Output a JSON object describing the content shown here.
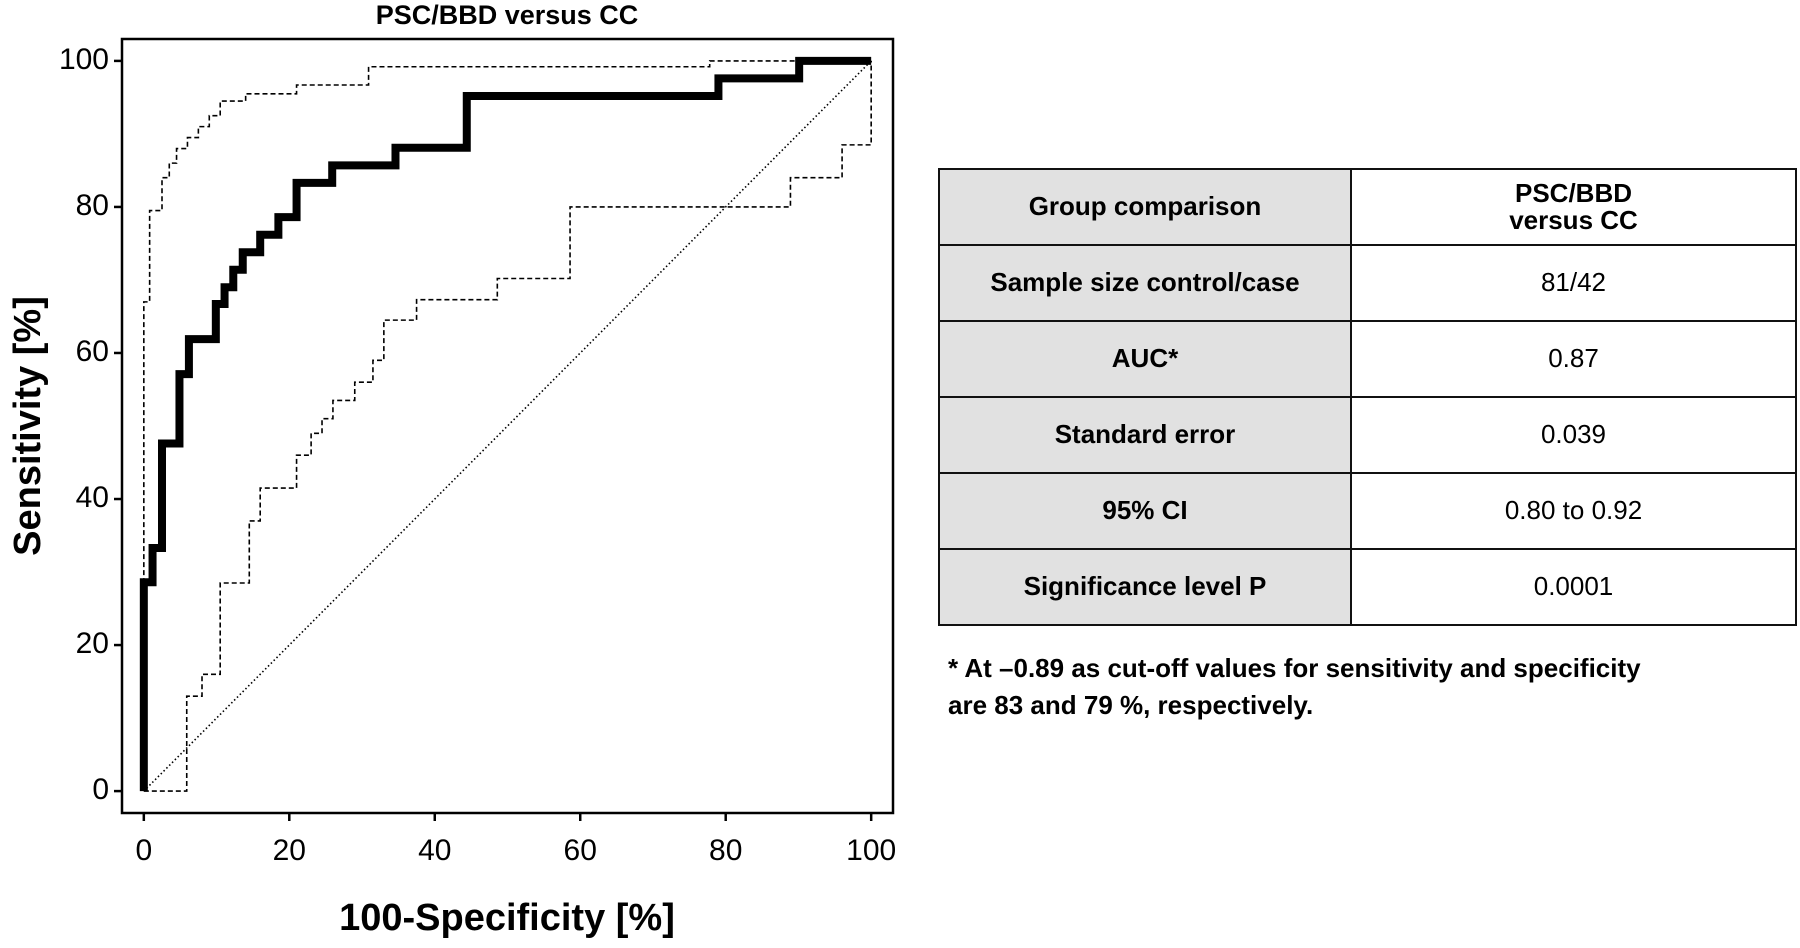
{
  "chart_data": {
    "type": "line",
    "title": "PSC/BBD versus CC",
    "xlabel": "100-Specificity [%]",
    "ylabel": "Sensitivity [%]",
    "xlim": [
      -3,
      103
    ],
    "ylim": [
      -3,
      103
    ],
    "xticks": [
      0,
      20,
      40,
      60,
      80,
      100
    ],
    "yticks": [
      0,
      20,
      40,
      60,
      80,
      100
    ],
    "grid": false,
    "series": [
      {
        "color": "#000000",
        "style": "bold",
        "x": [
          0,
          0,
          1.2,
          1.2,
          2.5,
          2.5,
          4.9,
          4.9,
          6.2,
          6.2,
          9.9,
          9.9,
          11.1,
          11.1,
          12.3,
          12.3,
          13.6,
          13.6,
          16,
          16,
          18.5,
          18.5,
          21,
          21,
          25.9,
          25.9,
          34.6,
          34.6,
          44.4,
          44.4,
          79,
          79,
          90.1,
          90.1,
          100
        ],
        "values": [
          0,
          28.6,
          28.6,
          33.3,
          33.3,
          47.6,
          47.6,
          57.1,
          57.1,
          61.9,
          61.9,
          66.7,
          66.7,
          69,
          69,
          71.4,
          71.4,
          73.8,
          73.8,
          76.2,
          76.2,
          78.6,
          78.6,
          83.3,
          83.3,
          85.7,
          85.7,
          88.1,
          88.1,
          95.2,
          95.2,
          97.6,
          97.6,
          100,
          100
        ]
      },
      {
        "color": "#000000",
        "style": "dashed",
        "x": [
          0,
          0,
          0.8,
          0.8,
          2.5,
          2.5,
          3.5,
          3.5,
          4.5,
          4.5,
          6,
          6,
          7.5,
          7.5,
          9,
          9,
          10.5,
          10.5,
          14,
          14,
          21,
          21,
          30.9,
          30.9,
          77.8,
          77.8,
          100
        ],
        "values": [
          0,
          67,
          67,
          79.5,
          79.5,
          84,
          84,
          86,
          86,
          88,
          88,
          89.5,
          89.5,
          91,
          91,
          92.5,
          92.5,
          94.5,
          94.5,
          95.5,
          95.5,
          96.7,
          96.7,
          99.2,
          99.2,
          100,
          100
        ]
      },
      {
        "color": "#000000",
        "style": "dashed",
        "x": [
          0,
          5.9,
          5.9,
          8,
          8,
          10.5,
          10.5,
          14.5,
          14.5,
          16,
          16,
          21,
          21,
          23,
          23,
          24.5,
          24.5,
          26,
          26,
          29,
          29,
          31.5,
          31.5,
          33,
          33,
          37.5,
          37.5,
          48.6,
          48.6,
          58.6,
          58.6,
          88.9,
          88.9,
          96,
          96,
          100,
          100
        ],
        "values": [
          0,
          0,
          13,
          13,
          16,
          16,
          28.5,
          28.5,
          37,
          37,
          41.5,
          41.5,
          46,
          46,
          49,
          49,
          51,
          51,
          53.5,
          53.5,
          56,
          56,
          59,
          59,
          64.5,
          64.5,
          67.3,
          67.3,
          70.2,
          70.2,
          80,
          80,
          84,
          84,
          88.5,
          88.5,
          100
        ]
      },
      {
        "color": "#000000",
        "style": "dotted",
        "x": [
          0,
          100
        ],
        "values": [
          0,
          100
        ]
      }
    ]
  },
  "table": {
    "header": [
      "Group comparison",
      "PSC/BBD\nversus CC"
    ],
    "rows": [
      [
        "Sample size control/case",
        "81/42"
      ],
      [
        "AUC*",
        "0.87"
      ],
      [
        "Standard error",
        "0.039"
      ],
      [
        "95% CI",
        "0.80 to 0.92"
      ],
      [
        "Significance level P",
        "0.0001"
      ]
    ]
  },
  "footnote": "* At –0.89 as cut-off values for sensitivity and specificity\n are 83 and 79 %, respectively."
}
